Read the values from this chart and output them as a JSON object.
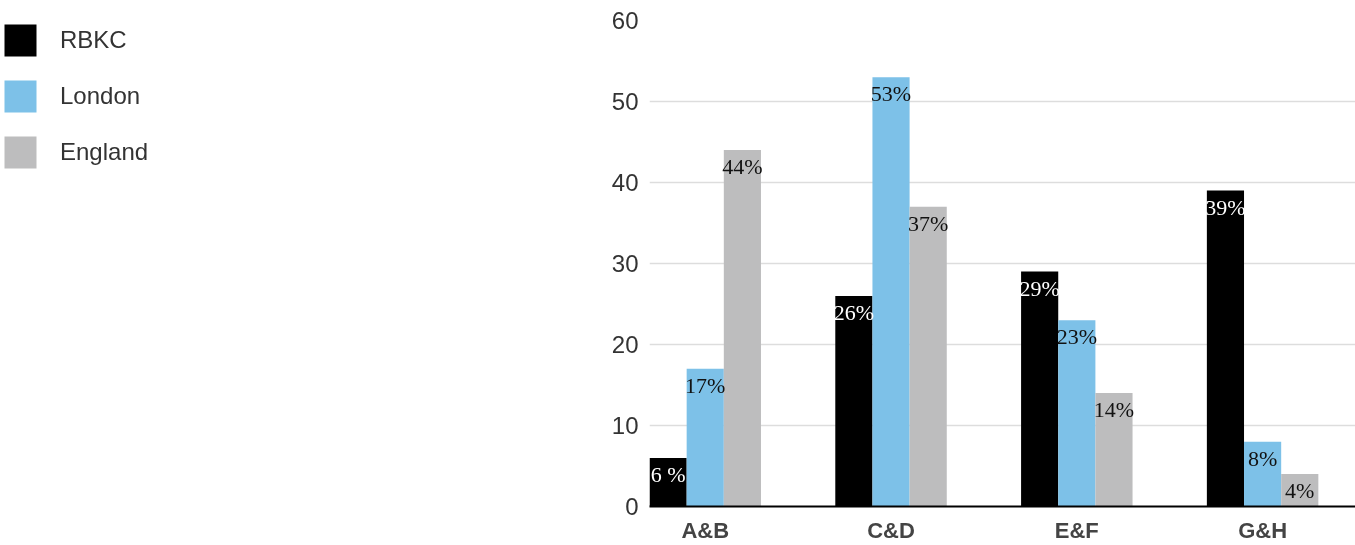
{
  "chart_data": {
    "type": "bar",
    "categories": [
      "A&B",
      "C&D",
      "E&F",
      "G&H"
    ],
    "series": [
      {
        "name": "RBKC",
        "color": "#000000",
        "values": [
          6,
          26,
          29,
          39
        ],
        "value_labels": [
          "6 %",
          "26%",
          "29%",
          "39%"
        ]
      },
      {
        "name": "London",
        "color": "#7dc1e8",
        "values": [
          17,
          53,
          23,
          8
        ],
        "value_labels": [
          "17%",
          "53%",
          "23%",
          "8%"
        ]
      },
      {
        "name": "England",
        "color": "#bdbdbe",
        "values": [
          44,
          37,
          14,
          4
        ],
        "value_labels": [
          "44%",
          "37%",
          "14%",
          "4%"
        ]
      }
    ],
    "ylim": [
      0,
      60
    ],
    "yticks": [
      0,
      10,
      20,
      30,
      40,
      50,
      60
    ],
    "grid": "y",
    "legend": "left"
  }
}
